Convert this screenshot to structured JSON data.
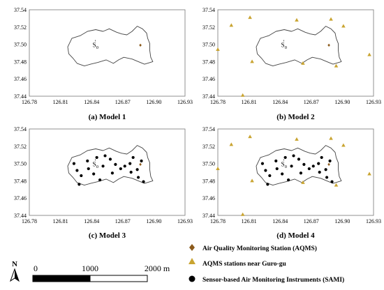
{
  "x_ticks": [
    "126.78",
    "126.81",
    "126.84",
    "126.87",
    "126.90",
    "126.93"
  ],
  "y_ticks": [
    "37.54",
    "37.52",
    "37.50",
    "37.48",
    "37.46",
    "37.44"
  ],
  "extent": {
    "lon_min": 126.78,
    "lon_max": 126.93,
    "lat_min": 37.44,
    "lat_max": 37.54
  },
  "origin_label": {
    "base": "S",
    "sub": "0"
  },
  "colors": {
    "aqms": "#8b5a1b",
    "near": "#c9a431",
    "sami": "#000000",
    "boundary": "#444444"
  },
  "panels": [
    {
      "id": "model-1",
      "caption": "(a) Model 1",
      "show_aqms": true,
      "show_near": false,
      "show_sami": false
    },
    {
      "id": "model-2",
      "caption": "(b) Model 2",
      "show_aqms": true,
      "show_near": true,
      "show_sami": false
    },
    {
      "id": "model-3",
      "caption": "(c) Model 3",
      "show_aqms": true,
      "show_near": false,
      "show_sami": true
    },
    {
      "id": "model-4",
      "caption": "(d) Model 4",
      "show_aqms": true,
      "show_near": true,
      "show_sami": true
    }
  ],
  "aqms_station": {
    "lon": 126.887,
    "lat": 37.499
  },
  "near_stations": [
    {
      "lon": 126.793,
      "lat": 37.522
    },
    {
      "lon": 126.811,
      "lat": 37.531
    },
    {
      "lon": 126.856,
      "lat": 37.528
    },
    {
      "lon": 126.889,
      "lat": 37.529
    },
    {
      "lon": 126.901,
      "lat": 37.521
    },
    {
      "lon": 126.78,
      "lat": 37.494
    },
    {
      "lon": 126.813,
      "lat": 37.48
    },
    {
      "lon": 126.862,
      "lat": 37.478
    },
    {
      "lon": 126.894,
      "lat": 37.475
    },
    {
      "lon": 126.926,
      "lat": 37.488
    },
    {
      "lon": 126.804,
      "lat": 37.441
    }
  ],
  "sami_stations": [
    {
      "lon": 126.823,
      "lat": 37.5
    },
    {
      "lon": 126.826,
      "lat": 37.492
    },
    {
      "lon": 126.83,
      "lat": 37.486
    },
    {
      "lon": 126.828,
      "lat": 37.476
    },
    {
      "lon": 126.836,
      "lat": 37.503
    },
    {
      "lon": 126.837,
      "lat": 37.494
    },
    {
      "lon": 126.842,
      "lat": 37.488
    },
    {
      "lon": 126.845,
      "lat": 37.507
    },
    {
      "lon": 126.848,
      "lat": 37.481
    },
    {
      "lon": 126.851,
      "lat": 37.497
    },
    {
      "lon": 126.853,
      "lat": 37.509
    },
    {
      "lon": 126.858,
      "lat": 37.505
    },
    {
      "lon": 126.86,
      "lat": 37.489
    },
    {
      "lon": 126.863,
      "lat": 37.499
    },
    {
      "lon": 126.868,
      "lat": 37.494
    },
    {
      "lon": 126.872,
      "lat": 37.497
    },
    {
      "lon": 126.877,
      "lat": 37.5
    },
    {
      "lon": 126.878,
      "lat": 37.49
    },
    {
      "lon": 126.884,
      "lat": 37.493
    },
    {
      "lon": 126.885,
      "lat": 37.484
    },
    {
      "lon": 126.88,
      "lat": 37.507
    },
    {
      "lon": 126.888,
      "lat": 37.503
    },
    {
      "lon": 126.89,
      "lat": 37.479
    }
  ],
  "boundary": [
    [
      126.817,
      37.497
    ],
    [
      126.821,
      37.507
    ],
    [
      126.829,
      37.51
    ],
    [
      126.836,
      37.515
    ],
    [
      126.844,
      37.517
    ],
    [
      126.851,
      37.515
    ],
    [
      126.857,
      37.518
    ],
    [
      126.864,
      37.514
    ],
    [
      126.869,
      37.512
    ],
    [
      126.874,
      37.511
    ],
    [
      126.879,
      37.515
    ],
    [
      126.884,
      37.521
    ],
    [
      126.889,
      37.518
    ],
    [
      126.893,
      37.513
    ],
    [
      126.894,
      37.507
    ],
    [
      126.896,
      37.501
    ],
    [
      126.896,
      37.493
    ],
    [
      126.897,
      37.485
    ],
    [
      126.899,
      37.48
    ],
    [
      126.891,
      37.477
    ],
    [
      126.885,
      37.48
    ],
    [
      126.879,
      37.483
    ],
    [
      126.871,
      37.485
    ],
    [
      126.866,
      37.482
    ],
    [
      126.861,
      37.478
    ],
    [
      126.854,
      37.482
    ],
    [
      126.846,
      37.479
    ],
    [
      126.839,
      37.477
    ],
    [
      126.833,
      37.475
    ],
    [
      126.826,
      37.478
    ],
    [
      126.822,
      37.484
    ],
    [
      126.818,
      37.489
    ]
  ],
  "legend": {
    "aqms": "Air Quality Monitoring Station (AQMS)",
    "near": "AQMS stations near Guro-gu",
    "sami": "Sensor-based Air Monitoring Instruments  (SAMI)"
  },
  "scale_bar": {
    "labels": [
      "0",
      "1000",
      "2000 m"
    ]
  },
  "north_arrow": {
    "label": "N"
  }
}
